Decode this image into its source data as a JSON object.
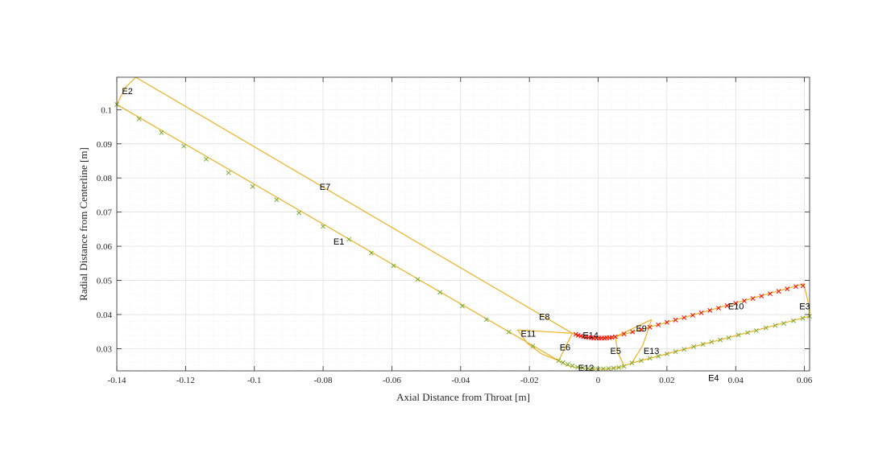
{
  "chart_data": {
    "type": "scatter",
    "title": "",
    "xlabel": "Axial Distance from Throat [m]",
    "ylabel": "Radial Distance from Centerline [m]",
    "xlim": [
      -0.14,
      0.0615
    ],
    "ylim": [
      0.0235,
      0.1095
    ],
    "grid": "major and minor",
    "x_ticks": [
      -0.14,
      -0.12,
      -0.1,
      -0.08,
      -0.06,
      -0.04,
      -0.02,
      0,
      0.02,
      0.04,
      0.06
    ],
    "x_tick_labels": [
      "-0.14",
      "-0.12",
      "-0.1",
      "-0.08",
      "-0.06",
      "-0.04",
      "-0.02",
      "0",
      "0.02",
      "0.04",
      "0.06"
    ],
    "y_ticks": [
      0.03,
      0.04,
      0.05,
      0.06,
      0.07,
      0.08,
      0.09,
      0.1
    ],
    "y_tick_labels": [
      "0.03",
      "0.04",
      "0.05",
      "0.06",
      "0.07",
      "0.08",
      "0.09",
      "0.1"
    ],
    "colors": {
      "edges": "#edb120",
      "wall_points": "#77ac30",
      "throat_points": "#ff0000",
      "grid": "#dcdcdc",
      "axes": "#262626"
    },
    "edges": [
      {
        "name": "E1",
        "points": [
          [
            -0.14,
            0.1015
          ],
          [
            -0.0115,
            0.0265
          ]
        ]
      },
      {
        "name": "E7",
        "points": [
          [
            -0.1345,
            0.1095
          ],
          [
            -0.0075,
            0.0345
          ]
        ]
      },
      {
        "name": "E2",
        "points": [
          [
            -0.14,
            0.1015
          ],
          [
            -0.1375,
            0.1065
          ],
          [
            -0.1345,
            0.1095
          ]
        ]
      },
      {
        "name": "E4",
        "points": [
          [
            0.0098,
            0.0258
          ],
          [
            0.0615,
            0.0395
          ]
        ]
      },
      {
        "name": "E10",
        "points": [
          [
            0.005,
            0.0335
          ],
          [
            0.0598,
            0.049
          ]
        ]
      },
      {
        "name": "E3",
        "points": [
          [
            0.0598,
            0.049
          ],
          [
            0.061,
            0.044
          ],
          [
            0.0615,
            0.0395
          ]
        ]
      },
      {
        "name": "E11",
        "points": [
          [
            -0.0235,
            0.0355
          ],
          [
            -0.0205,
            0.0315
          ],
          [
            -0.0165,
            0.0285
          ],
          [
            -0.0115,
            0.0265
          ]
        ]
      },
      {
        "name": "E8",
        "points": [
          [
            -0.0235,
            0.0355
          ],
          [
            -0.0075,
            0.0345
          ]
        ]
      },
      {
        "name": "E6",
        "points": [
          [
            -0.0075,
            0.0345
          ],
          [
            -0.0095,
            0.0305
          ],
          [
            -0.0115,
            0.0265
          ]
        ]
      },
      {
        "name": "E5",
        "points": [
          [
            0.005,
            0.0335
          ],
          [
            0.0057,
            0.029
          ],
          [
            0.0075,
            0.025
          ]
        ]
      },
      {
        "name": "E9",
        "points": [
          [
            0.005,
            0.0335
          ],
          [
            0.0155,
            0.0385
          ]
        ]
      },
      {
        "name": "E13",
        "points": [
          [
            0.0155,
            0.0385
          ],
          [
            0.013,
            0.031
          ],
          [
            0.0098,
            0.0258
          ]
        ]
      },
      {
        "name": "E12",
        "points": [
          [
            -0.0115,
            0.0265
          ],
          [
            -0.0095,
            0.0253
          ],
          [
            -0.007,
            0.0246
          ],
          [
            -0.004,
            0.0242
          ],
          [
            0,
            0.024
          ],
          [
            0.003,
            0.0241
          ],
          [
            0.0065,
            0.0246
          ],
          [
            0.0098,
            0.0258
          ]
        ]
      },
      {
        "name": "E14",
        "points": [
          [
            -0.0075,
            0.0345
          ],
          [
            -0.006,
            0.0339
          ],
          [
            -0.004,
            0.0334
          ],
          [
            -0.002,
            0.0332
          ],
          [
            0,
            0.0331
          ],
          [
            0.002,
            0.0332
          ],
          [
            0.0035,
            0.0333
          ],
          [
            0.005,
            0.0335
          ]
        ]
      }
    ],
    "labels": [
      {
        "text": "E1",
        "x": -0.077,
        "y": 0.0605
      },
      {
        "text": "E2",
        "x": -0.1385,
        "y": 0.1045
      },
      {
        "text": "E3",
        "x": 0.0585,
        "y": 0.0415
      },
      {
        "text": "E4",
        "x": 0.032,
        "y": 0.0205
      },
      {
        "text": "E5",
        "x": 0.0035,
        "y": 0.0285
      },
      {
        "text": "E6",
        "x": -0.0112,
        "y": 0.0295
      },
      {
        "text": "E7",
        "x": -0.081,
        "y": 0.0765
      },
      {
        "text": "E8",
        "x": -0.0172,
        "y": 0.0385
      },
      {
        "text": "E9",
        "x": 0.011,
        "y": 0.035
      },
      {
        "text": "E10",
        "x": 0.0378,
        "y": 0.0415
      },
      {
        "text": "E11",
        "x": -0.0225,
        "y": 0.0335
      },
      {
        "text": "E12",
        "x": -0.0058,
        "y": 0.0235
      },
      {
        "text": "E13",
        "x": 0.0132,
        "y": 0.0285
      },
      {
        "text": "E14",
        "x": -0.0045,
        "y": 0.033
      }
    ],
    "series": [
      {
        "marker": "x",
        "color": "#77ac30",
        "x": [
          -0.14,
          -0.1335,
          -0.127,
          -0.1205,
          -0.114,
          -0.1075,
          -0.1005,
          -0.0935,
          -0.087,
          -0.08,
          -0.0725,
          -0.066,
          -0.0595,
          -0.0525,
          -0.046,
          -0.0395,
          -0.0325,
          -0.026,
          -0.019,
          -0.0115,
          -0.0102,
          -0.0088,
          -0.0075,
          -0.006,
          -0.0045,
          -0.003,
          -0.0015,
          0,
          0.0015,
          0.003,
          0.0045,
          0.006,
          0.0075,
          0.0098,
          0.0125,
          0.015,
          0.0175,
          0.02,
          0.0225,
          0.025,
          0.0278,
          0.0305,
          0.033,
          0.0355,
          0.038,
          0.0408,
          0.0435,
          0.046,
          0.0488,
          0.0515,
          0.054,
          0.0568,
          0.0595,
          0.0615
        ],
        "y": [
          0.1015,
          0.0973,
          0.0933,
          0.0893,
          0.0855,
          0.0815,
          0.0775,
          0.0736,
          0.0698,
          0.0658,
          0.062,
          0.058,
          0.0543,
          0.0503,
          0.0465,
          0.0425,
          0.0385,
          0.0349,
          0.0308,
          0.0265,
          0.0259,
          0.0254,
          0.025,
          0.0246,
          0.0244,
          0.0242,
          0.0241,
          0.024,
          0.0241,
          0.0242,
          0.0243,
          0.0245,
          0.0248,
          0.0258,
          0.0265,
          0.0272,
          0.0278,
          0.0285,
          0.0291,
          0.0298,
          0.0306,
          0.0313,
          0.032,
          0.0326,
          0.0332,
          0.034,
          0.0347,
          0.0353,
          0.0361,
          0.0368,
          0.0374,
          0.0382,
          0.0389,
          0.0395
        ]
      },
      {
        "marker": "x",
        "color": "#ff0000",
        "x": [
          -0.0065,
          -0.0058,
          -0.005,
          -0.0043,
          -0.0035,
          -0.0028,
          -0.002,
          -0.0013,
          -0.0005,
          0.0003,
          0.001,
          0.0018,
          0.0025,
          0.0033,
          0.004,
          0.005,
          0.0075,
          0.01,
          0.0125,
          0.015,
          0.0175,
          0.02,
          0.0225,
          0.025,
          0.0275,
          0.03,
          0.0325,
          0.035,
          0.0375,
          0.04,
          0.0425,
          0.045,
          0.0475,
          0.05,
          0.0525,
          0.055,
          0.0575,
          0.0595
        ],
        "y": [
          0.0342,
          0.0339,
          0.0337,
          0.0335,
          0.0334,
          0.0333,
          0.0332,
          0.0331,
          0.0331,
          0.0331,
          0.0331,
          0.0331,
          0.0332,
          0.0332,
          0.0333,
          0.0335,
          0.0343,
          0.0349,
          0.0356,
          0.0363,
          0.037,
          0.0377,
          0.0384,
          0.0391,
          0.0398,
          0.0405,
          0.0412,
          0.0419,
          0.0426,
          0.0433,
          0.044,
          0.0447,
          0.0454,
          0.0461,
          0.0468,
          0.0475,
          0.0482,
          0.0484
        ]
      }
    ]
  }
}
